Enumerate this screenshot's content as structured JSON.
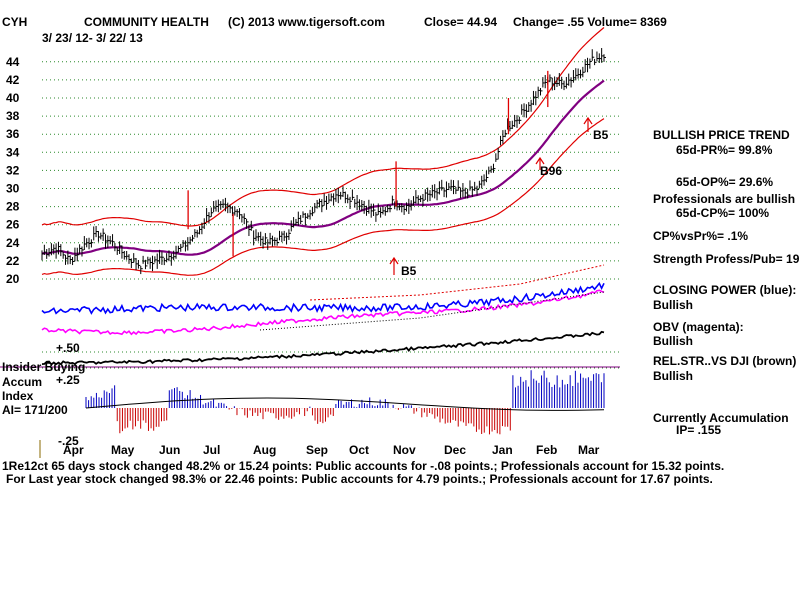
{
  "header": {
    "symbol": "CYH",
    "company": "COMMUNITY HEALTH",
    "copyright": "(C) 2013 www.tigersoft.com",
    "close": "Close=  44.94",
    "change": "Change= .55 Volume= 8369",
    "date_range": "3/ 23/ 12-  3/ 22/ 13"
  },
  "right_panel": {
    "trend_title": "BULLISH PRICE TREND",
    "pr": "65d-PR%= 99.8%",
    "op": "65d-OP%= 29.6%",
    "prof1": "Professionals are bullish",
    "cp": "65d-CP%= 100%",
    "cpvspr": "CP%vsPr%=  .1%",
    "strength": "Strength Profess/Pub= 19",
    "closing_power": "CLOSING POWER (blue):",
    "closing_power_val": "Bullish",
    "obv": "OBV (magenta):",
    "obv_val": "Bullish",
    "relstr": "REL.STR..VS DJI (brown)",
    "relstr_val": "Bullish",
    "accum": "Currently Accumulation",
    "ip": "IP=  .155"
  },
  "left_panel": {
    "insider": "Insider Buying",
    "accum": "Accum",
    "index": "Index",
    "ai": "AI= 171/200",
    "plus50": "+.50",
    "plus25": "+.25",
    "minus25": "-.25"
  },
  "footer": {
    "line1": "1Re12ct 65 days stock changed  48.2% or  15.24 points:  Public accounts for -.08 points.;  Professionals account for  15.32 points.",
    "line2": "For Last year stock changed  98.3% or  22.46 points:  Public accounts for  4.79 points.;  Professionals account for  17.67 points."
  },
  "chart_data": {
    "type": "ohlc",
    "title": "COMMUNITY HEALTH (CYH) 3/23/12 - 3/22/13",
    "x_labels": [
      "Apr",
      "May",
      "Jun",
      "Jul",
      "Aug",
      "Sep",
      "Oct",
      "Nov",
      "Dec",
      "Jan",
      "Feb",
      "Mar"
    ],
    "y_ticks": [
      20,
      22,
      24,
      26,
      28,
      30,
      32,
      34,
      36,
      38,
      40,
      42,
      44
    ],
    "ylim": [
      19,
      46
    ],
    "price_close": [
      22.8,
      23.5,
      22.0,
      23.8,
      25.0,
      24.0,
      22.5,
      21.5,
      22.0,
      22.5,
      23.5,
      25.0,
      27.5,
      28.0,
      27.5,
      25.0,
      24.0,
      24.5,
      26.0,
      27.5,
      28.5,
      29.5,
      29.0,
      28.0,
      27.0,
      28.5,
      28.0,
      29.0,
      29.5,
      30.0,
      29.5,
      30.0,
      32.0,
      36.5,
      38.0,
      40.0,
      42.0,
      41.5,
      42.5,
      44.0,
      44.9
    ],
    "signals": [
      {
        "label": "B5",
        "near": "Oct/Nov"
      },
      {
        "label": "B5",
        "near": "Mar"
      },
      {
        "label": "B96",
        "near": "Feb"
      }
    ],
    "series": [
      {
        "name": "Price",
        "color": "#000000"
      },
      {
        "name": "65-day MA",
        "color": "#800080"
      },
      {
        "name": "Upper band",
        "color": "#e00000"
      },
      {
        "name": "Lower band",
        "color": "#e00000"
      },
      {
        "name": "Closing Power",
        "color": "#0000ff"
      },
      {
        "name": "OBV",
        "color": "#ff00ff"
      },
      {
        "name": "Rel.Str vs DJI",
        "color": "#800000"
      },
      {
        "name": "Accumulation Index",
        "color": "#0000c0"
      }
    ],
    "accumulation_index": {
      "current": 0.155,
      "range": [
        -0.25,
        0.5
      ]
    }
  }
}
